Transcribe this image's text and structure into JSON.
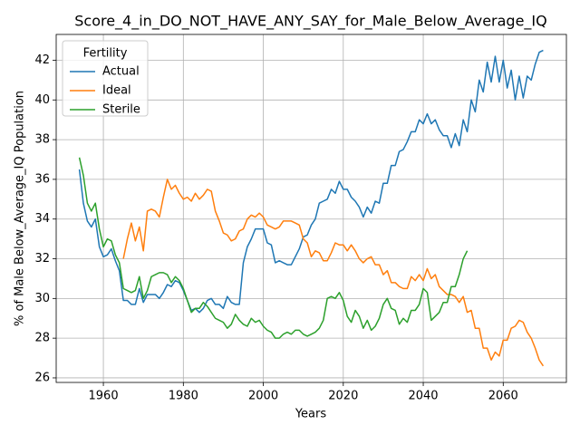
{
  "chart_data": {
    "type": "line",
    "title": "Score_4_in_DO_NOT_HAVE_ANY_SAY_for_Male_Below_Average_IQ",
    "xlabel": "Years",
    "ylabel": "% of Male Below_Average_IQ Population",
    "legend_title": "Fertility",
    "legend_position": "upper left",
    "grid": true,
    "xlim": [
      1948.2,
      2075.8
    ],
    "ylim": [
      25.77,
      43.3
    ],
    "xticks": [
      1960,
      1980,
      2000,
      2020,
      2040,
      2060
    ],
    "yticks": [
      26,
      28,
      30,
      32,
      34,
      36,
      38,
      40,
      42
    ],
    "x": [
      1954,
      1955,
      1956,
      1957,
      1958,
      1959,
      1960,
      1961,
      1962,
      1963,
      1964,
      1965,
      1966,
      1967,
      1968,
      1969,
      1970,
      1971,
      1972,
      1973,
      1974,
      1975,
      1976,
      1977,
      1978,
      1979,
      1980,
      1981,
      1982,
      1983,
      1984,
      1985,
      1986,
      1987,
      1988,
      1989,
      1990,
      1991,
      1992,
      1993,
      1994,
      1995,
      1996,
      1997,
      1998,
      1999,
      2000,
      2001,
      2002,
      2003,
      2004,
      2005,
      2006,
      2007,
      2008,
      2009,
      2010,
      2011,
      2012,
      2013,
      2014,
      2015,
      2016,
      2017,
      2018,
      2019,
      2020,
      2021,
      2022,
      2023,
      2024,
      2025,
      2026,
      2027,
      2028,
      2029,
      2030,
      2031,
      2032,
      2033,
      2034,
      2035,
      2036,
      2037,
      2038,
      2039,
      2040,
      2041,
      2042,
      2043,
      2044,
      2045,
      2046,
      2047,
      2048,
      2049,
      2050,
      2051,
      2052,
      2053,
      2054,
      2055,
      2056,
      2057,
      2058,
      2059,
      2060,
      2061,
      2062,
      2063,
      2064,
      2065,
      2066,
      2067,
      2068,
      2069,
      2070
    ],
    "series": [
      {
        "name": "Actual",
        "color": "#1f77b4",
        "values": [
          36.5,
          34.8,
          33.9,
          33.6,
          34.0,
          32.6,
          32.1,
          32.2,
          32.5,
          31.9,
          31.4,
          29.9,
          29.9,
          29.7,
          29.7,
          30.5,
          29.8,
          30.2,
          30.2,
          30.2,
          30.0,
          30.3,
          30.7,
          30.6,
          30.9,
          30.8,
          30.4,
          29.9,
          29.4,
          29.5,
          29.3,
          29.5,
          29.9,
          30.0,
          29.7,
          29.7,
          29.5,
          30.1,
          29.8,
          29.7,
          29.7,
          31.8,
          32.6,
          33.0,
          33.5,
          33.5,
          33.5,
          32.8,
          32.7,
          31.8,
          31.9,
          31.8,
          31.7,
          31.7,
          32.1,
          32.5,
          33.1,
          33.2,
          33.7,
          34.0,
          34.8,
          34.9,
          35.0,
          35.5,
          35.3,
          35.9,
          35.5,
          35.5,
          35.1,
          34.9,
          34.6,
          34.1,
          34.6,
          34.3,
          34.9,
          34.8,
          35.8,
          35.8,
          36.7,
          36.7,
          37.4,
          37.5,
          37.9,
          38.4,
          38.4,
          39.0,
          38.8,
          39.3,
          38.8,
          39.0,
          38.5,
          38.2,
          38.2,
          37.6,
          38.3,
          37.7,
          39.0,
          38.4,
          40.0,
          39.4,
          41.0,
          40.4,
          41.9,
          40.9,
          42.2,
          40.9,
          42.0,
          40.6,
          41.5,
          40.0,
          41.2,
          40.1,
          41.2,
          41.0,
          41.8,
          42.4,
          42.5
        ]
      },
      {
        "name": "Ideal",
        "color": "#ff7f0e",
        "values": [
          null,
          null,
          null,
          null,
          null,
          null,
          null,
          null,
          null,
          null,
          null,
          32.0,
          33.0,
          33.8,
          32.9,
          33.6,
          32.4,
          34.4,
          34.5,
          34.4,
          34.1,
          35.1,
          36.0,
          35.5,
          35.7,
          35.3,
          35.0,
          35.1,
          34.9,
          35.3,
          35.0,
          35.2,
          35.5,
          35.4,
          34.4,
          33.9,
          33.3,
          33.2,
          32.9,
          33.0,
          33.4,
          33.5,
          34.0,
          34.2,
          34.1,
          34.3,
          34.1,
          33.7,
          33.6,
          33.5,
          33.6,
          33.9,
          33.9,
          33.9,
          33.8,
          33.7,
          33.0,
          32.8,
          32.1,
          32.4,
          32.3,
          31.9,
          31.9,
          32.3,
          32.8,
          32.7,
          32.7,
          32.4,
          32.7,
          32.4,
          32.0,
          31.8,
          32.0,
          32.1,
          31.7,
          31.7,
          31.2,
          31.4,
          30.8,
          30.8,
          30.6,
          30.5,
          30.5,
          31.1,
          30.9,
          31.2,
          30.9,
          31.5,
          31.0,
          31.2,
          30.6,
          30.4,
          30.2,
          30.2,
          30.1,
          29.8,
          30.1,
          29.3,
          29.4,
          28.5,
          28.5,
          27.5,
          27.5,
          26.9,
          27.3,
          27.1,
          27.9,
          27.9,
          28.5,
          28.6,
          28.9,
          28.8,
          28.3,
          28.0,
          27.5,
          26.9,
          26.6
        ]
      },
      {
        "name": "Sterile",
        "color": "#2ca02c",
        "values": [
          37.1,
          36.2,
          34.8,
          34.4,
          34.8,
          33.5,
          32.6,
          33.0,
          32.9,
          32.2,
          31.8,
          30.5,
          30.4,
          30.3,
          30.4,
          31.1,
          30.0,
          30.4,
          31.1,
          31.2,
          31.3,
          31.3,
          31.2,
          30.8,
          31.1,
          30.9,
          30.5,
          29.9,
          29.3,
          29.5,
          29.5,
          29.8,
          29.6,
          29.3,
          29.0,
          28.9,
          28.8,
          28.5,
          28.7,
          29.2,
          28.9,
          28.7,
          28.6,
          29.0,
          28.8,
          28.9,
          28.6,
          28.4,
          28.3,
          28.0,
          28.0,
          28.2,
          28.3,
          28.2,
          28.4,
          28.4,
          28.2,
          28.1,
          28.2,
          28.3,
          28.5,
          28.9,
          30.0,
          30.1,
          30.0,
          30.3,
          29.9,
          29.1,
          28.8,
          29.4,
          29.1,
          28.5,
          28.9,
          28.4,
          28.6,
          29.0,
          29.7,
          30.0,
          29.5,
          29.4,
          28.7,
          29.0,
          28.8,
          29.4,
          29.4,
          29.7,
          30.5,
          30.3,
          28.9,
          29.1,
          29.3,
          29.8,
          29.8,
          30.6,
          30.6,
          31.2,
          32.0,
          32.4,
          null,
          null,
          null,
          null,
          null,
          null,
          null,
          null,
          null,
          null,
          null,
          null,
          null,
          null,
          null,
          null,
          null,
          null,
          null
        ]
      }
    ]
  }
}
